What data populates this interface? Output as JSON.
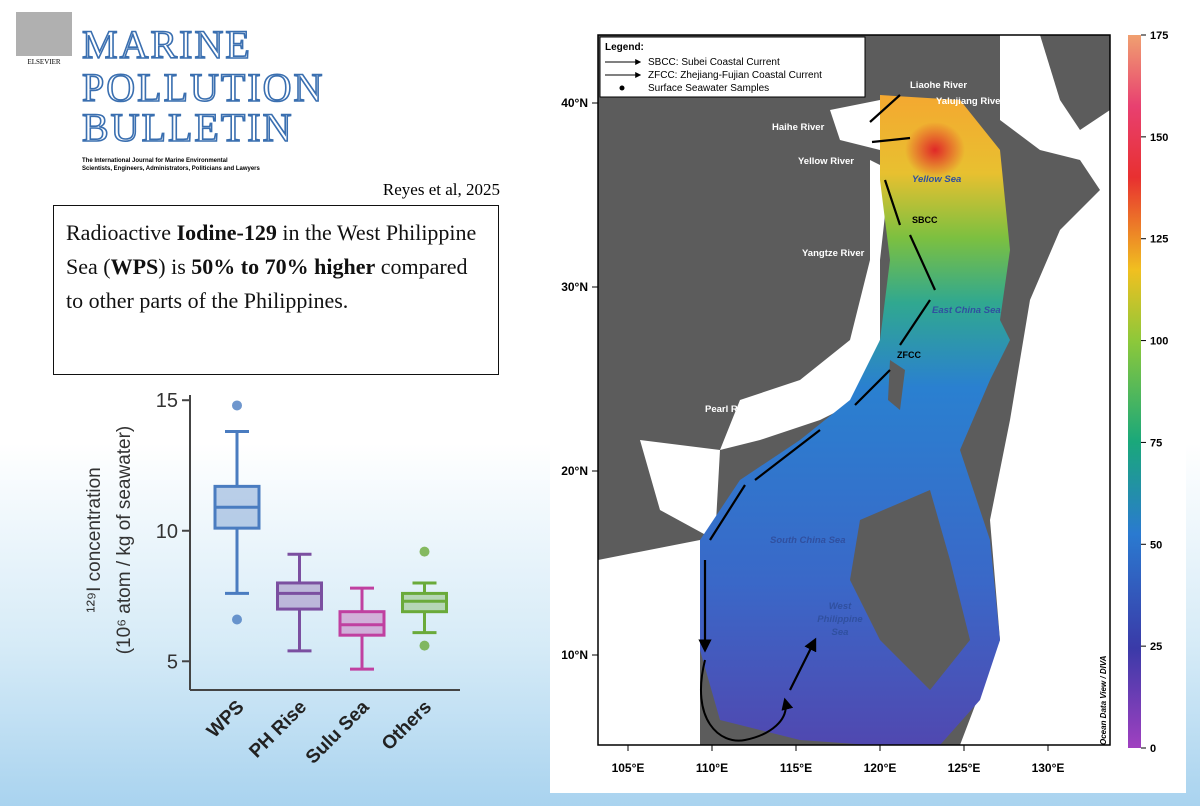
{
  "header": {
    "publisher": "ELSEVIER",
    "title_lines": [
      "MARINE",
      "POLLUTION",
      "BULLETIN"
    ],
    "subtitle_lines": [
      "The International Journal for Marine Environmental",
      "Scientists, Engineers, Administrators, Politicians and Lawyers"
    ],
    "citation": "Reyes et al, 2025"
  },
  "callout": [
    {
      "text": "Radioactive ",
      "bold": false
    },
    {
      "text": "Iodine-129",
      "bold": true
    },
    {
      "text": " in the West Philippine Sea (",
      "bold": false
    },
    {
      "text": "WPS",
      "bold": true
    },
    {
      "text": ") is ",
      "bold": false
    },
    {
      "text": "50% to 70% higher",
      "bold": true
    },
    {
      "text": " compared to other parts of the Philippines.",
      "bold": false
    }
  ],
  "chart_data": {
    "type": "box",
    "ylabel_lines": [
      "¹²⁹I concentration",
      "(10⁶ atom / kg of seawater)"
    ],
    "categories": [
      "WPS",
      "PH Rise",
      "Sulu Sea",
      "Others"
    ],
    "boxes": [
      {
        "color": "#4a7cc0",
        "whisker_low": 7.6,
        "q1": 10.1,
        "median": 10.9,
        "q3": 11.7,
        "whisker_high": 13.8,
        "outliers": [
          14.8,
          6.6
        ]
      },
      {
        "color": "#7b4fa0",
        "whisker_low": 5.4,
        "q1": 7.0,
        "median": 7.6,
        "q3": 8.0,
        "whisker_high": 9.1,
        "outliers": []
      },
      {
        "color": "#c040a0",
        "whisker_low": 4.7,
        "q1": 6.0,
        "median": 6.4,
        "q3": 6.9,
        "whisker_high": 7.8,
        "outliers": []
      },
      {
        "color": "#6aaa3a",
        "whisker_low": 6.1,
        "q1": 6.9,
        "median": 7.3,
        "q3": 7.6,
        "whisker_high": 8.0,
        "outliers": [
          9.2,
          5.6
        ]
      }
    ],
    "ylim": [
      3.9,
      15.2
    ],
    "yticks": [
      5,
      10,
      15
    ]
  },
  "map": {
    "legend": {
      "title": "Legend:",
      "entries": [
        "SBCC: Subei Coastal Current",
        "ZFCC: Zhejiang-Fujian Coastal Current",
        "Surface Seawater Samples"
      ]
    },
    "places": {
      "liaohe": "Liaohe River",
      "yalujiang": "Yalujiang River",
      "haihe": "Haihe River",
      "yellow_river": "Yellow River",
      "yellow_sea": "Yellow Sea",
      "sbcc": "SBCC",
      "yangtze": "Yangtze River",
      "east_china_sea": "East China Sea",
      "zfcc": "ZFCC",
      "pearl": "Pearl River",
      "south_china_sea": "South China Sea",
      "west_philippine_sea": [
        "West",
        "Philippine",
        "Sea"
      ]
    },
    "credit": "Ocean Data View / DIVA",
    "lat_ticks": [
      {
        "value": 40,
        "label": "40°N"
      },
      {
        "value": 30,
        "label": "30°N"
      },
      {
        "value": 20,
        "label": "20°N"
      },
      {
        "value": 10,
        "label": "10°N"
      }
    ],
    "lon_ticks": [
      {
        "value": 105,
        "label": "105°E"
      },
      {
        "value": 110,
        "label": "110°E"
      },
      {
        "value": 115,
        "label": "115°E"
      },
      {
        "value": 120,
        "label": "120°E"
      },
      {
        "value": 125,
        "label": "125°E"
      },
      {
        "value": 130,
        "label": "130°E"
      }
    ],
    "colorbar": {
      "range": [
        0,
        175
      ],
      "ticks": [
        0,
        25,
        50,
        75,
        100,
        125,
        150,
        175
      ]
    }
  }
}
